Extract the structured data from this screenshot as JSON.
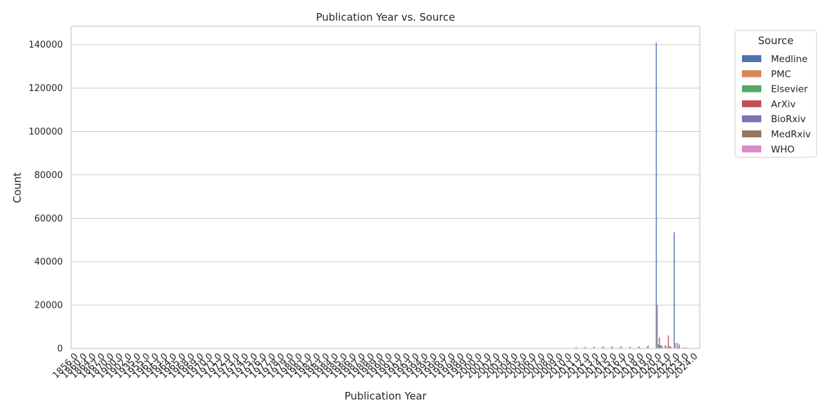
{
  "chart_data": {
    "type": "bar",
    "title": "Publication Year vs. Source",
    "xlabel": "Publication Year",
    "ylabel": "Count",
    "ylim": [
      0,
      148500
    ],
    "yticks": [
      0,
      20000,
      40000,
      60000,
      80000,
      100000,
      120000,
      140000
    ],
    "grid": true,
    "legend_title": "Source",
    "legend_position": "outside-top-right",
    "categories": [
      "1856.0",
      "1860.0",
      "1864.0",
      "1867.0",
      "1870.0",
      "1900.0",
      "1902.0",
      "1935.0",
      "1955.0",
      "1961.0",
      "1963.0",
      "1964.0",
      "1965.0",
      "1968.0",
      "1969.0",
      "1970.0",
      "1971.0",
      "1972.0",
      "1973.0",
      "1974.0",
      "1975.0",
      "1976.0",
      "1977.0",
      "1978.0",
      "1979.0",
      "1980.0",
      "1981.0",
      "1982.0",
      "1983.0",
      "1984.0",
      "1985.0",
      "1986.0",
      "1987.0",
      "1988.0",
      "1989.0",
      "1990.0",
      "1991.0",
      "1992.0",
      "1993.0",
      "1994.0",
      "1995.0",
      "1996.0",
      "1997.0",
      "1998.0",
      "1999.0",
      "2000.0",
      "2001.0",
      "2002.0",
      "2003.0",
      "2004.0",
      "2005.0",
      "2006.0",
      "2007.0",
      "2008.0",
      "2009.0",
      "2010.0",
      "2011.0",
      "2012.0",
      "2013.0",
      "2014.0",
      "2015.0",
      "2016.0",
      "2017.0",
      "2018.0",
      "2019.0",
      "2020.0",
      "2021.0",
      "2022.0",
      "2023.0",
      "2024.0"
    ],
    "series": [
      {
        "name": "Medline",
        "color": "#4c72b0",
        "values": {
          "2011.0": 400,
          "2012.0": 500,
          "2013.0": 500,
          "2014.0": 600,
          "2015.0": 600,
          "2016.0": 600,
          "2017.0": 500,
          "2018.0": 600,
          "2019.0": 900,
          "2020.0": 141000,
          "2021.0": 1500,
          "2022.0": 53500,
          "2023.0": 300
        }
      },
      {
        "name": "PMC",
        "color": "#dd8452",
        "values": {
          "2011.0": 700,
          "2012.0": 800,
          "2013.0": 900,
          "2014.0": 1000,
          "2015.0": 1100,
          "2016.0": 1000,
          "2017.0": 900,
          "2018.0": 1000,
          "2019.0": 1500,
          "2020.0": 20000,
          "2021.0": 1000,
          "2022.0": 2500,
          "2023.0": 600
        }
      },
      {
        "name": "Elsevier",
        "color": "#55a868",
        "values": {
          "2020.0": 2000,
          "2021.0": 300
        }
      },
      {
        "name": "ArXiv",
        "color": "#c44e52",
        "values": {
          "2020.0": 5000,
          "2021.0": 6000,
          "2022.0": 2500,
          "2023.0": 500
        }
      },
      {
        "name": "BioRxiv",
        "color": "#8172b3",
        "values": {
          "2020.0": 1500,
          "2021.0": 1000,
          "2022.0": 700
        }
      },
      {
        "name": "MedRxiv",
        "color": "#937860",
        "values": {
          "2020.0": 1500,
          "2021.0": 1000,
          "2022.0": 2000
        }
      },
      {
        "name": "WHO",
        "color": "#da8bc3",
        "values": {
          "2020.0": 1000,
          "2021.0": 500
        }
      }
    ]
  }
}
